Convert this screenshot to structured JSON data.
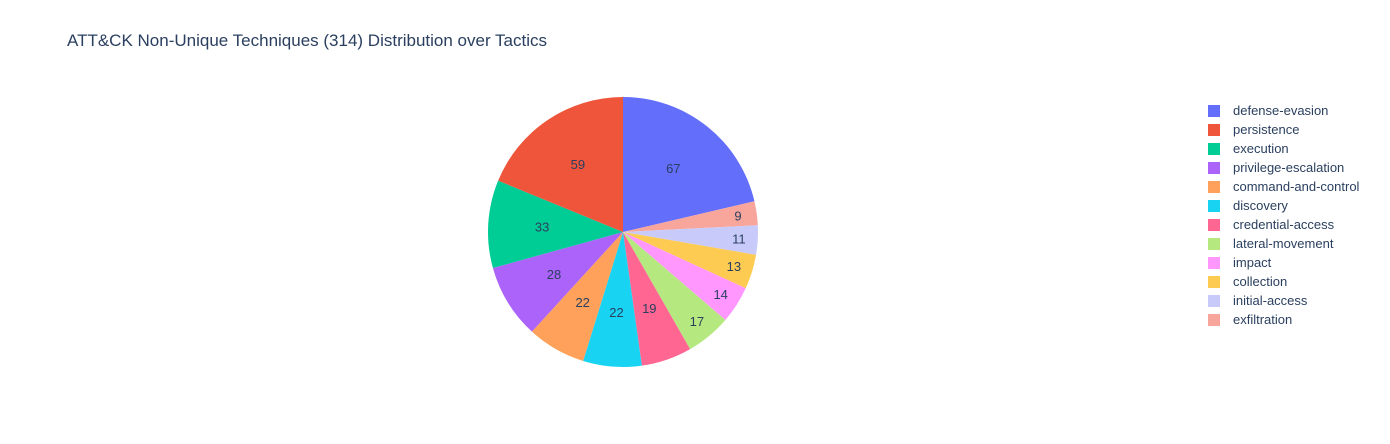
{
  "chart_data": {
    "type": "pie",
    "title": "ATT&CK Non-Unique Techniques (314) Distribution over Tactics",
    "direction": "clockwise",
    "start_angle": "12 o'clock",
    "legend_position": "right",
    "slices": [
      {
        "label": "defense-evasion",
        "value": 67,
        "color": "#636efa"
      },
      {
        "label": "exfiltration",
        "value": 9,
        "color": "#f8a59b"
      },
      {
        "label": "initial-access",
        "value": 11,
        "color": "#c8cbfa"
      },
      {
        "label": "collection",
        "value": 13,
        "color": "#fecb52"
      },
      {
        "label": "impact",
        "value": 14,
        "color": "#ff97ff"
      },
      {
        "label": "lateral-movement",
        "value": 17,
        "color": "#b6e880"
      },
      {
        "label": "credential-access",
        "value": 19,
        "color": "#ff6692"
      },
      {
        "label": "discovery",
        "value": 22,
        "color": "#19d3f3"
      },
      {
        "label": "command-and-control",
        "value": 22,
        "color": "#ffa15a"
      },
      {
        "label": "privilege-escalation",
        "value": 28,
        "color": "#ab63fa"
      },
      {
        "label": "execution",
        "value": 33,
        "color": "#00cc96"
      },
      {
        "label": "persistence",
        "value": 59,
        "color": "#ef553b"
      }
    ],
    "legend": [
      {
        "label": "defense-evasion",
        "color": "#636efa"
      },
      {
        "label": "persistence",
        "color": "#ef553b"
      },
      {
        "label": "execution",
        "color": "#00cc96"
      },
      {
        "label": "privilege-escalation",
        "color": "#ab63fa"
      },
      {
        "label": "command-and-control",
        "color": "#ffa15a"
      },
      {
        "label": "discovery",
        "color": "#19d3f3"
      },
      {
        "label": "credential-access",
        "color": "#ff6692"
      },
      {
        "label": "lateral-movement",
        "color": "#b6e880"
      },
      {
        "label": "impact",
        "color": "#ff97ff"
      },
      {
        "label": "collection",
        "color": "#fecb52"
      },
      {
        "label": "initial-access",
        "color": "#c8cbfa"
      },
      {
        "label": "exfiltration",
        "color": "#f8a59b"
      }
    ]
  }
}
